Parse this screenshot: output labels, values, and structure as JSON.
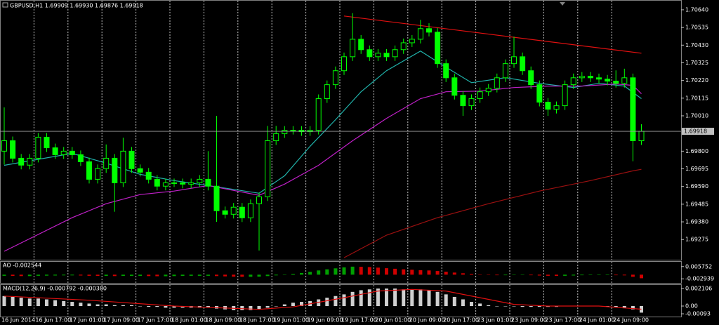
{
  "chart_data": [
    {
      "type": "candlestick",
      "title": "GBPUSD,H1  1.69909 1.69930 1.69876 1.69918",
      "categories": [
        "16 Jun 2014",
        null,
        null,
        null,
        "16 Jun 17:00",
        null,
        null,
        null,
        "17 Jun 01:00",
        null,
        null,
        null,
        "17 Jun 09:00",
        null,
        null,
        null,
        "17 Jun 17:00",
        null,
        null,
        null,
        "18 Jun 01:00",
        null,
        null,
        null,
        "18 Jun 09:00",
        null,
        null,
        null,
        "18 Jun 17:00",
        null,
        null,
        null,
        "19 Jun 01:00",
        null,
        null,
        null,
        "19 Jun 09:00",
        null,
        null,
        null,
        "19 Jun 17:00",
        null,
        null,
        null,
        "20 Jun 01:00",
        null,
        null,
        null,
        "20 Jun 09:00",
        null,
        null,
        null,
        "20 Jun 17:00",
        null,
        null,
        null,
        "23 Jun 01:00",
        null,
        null,
        null,
        "23 Jun 09:00",
        null,
        null,
        null,
        "23 Jun 17:00",
        null,
        null,
        null,
        "24 Jun 01:00",
        null,
        null,
        null,
        "24 Jun 09:00",
        null,
        null,
        null
      ],
      "open": [
        1.698,
        1.69862,
        1.69758,
        1.69717,
        1.69758,
        1.69883,
        1.6982,
        1.69779,
        1.698,
        1.69779,
        1.69737,
        1.69633,
        1.69696,
        1.69758,
        1.69612,
        1.698,
        1.69696,
        1.69675,
        1.69633,
        1.69592,
        1.69612,
        1.69612,
        1.69604,
        1.69612,
        1.69633,
        1.69592,
        1.69446,
        1.69425,
        1.69467,
        1.69404,
        1.69488,
        1.69529,
        1.69862,
        1.69904,
        1.69924,
        1.69924,
        1.69916,
        1.69924,
        1.70112,
        1.70195,
        1.70278,
        1.70361,
        1.70465,
        1.70403,
        1.70361,
        1.70382,
        1.70361,
        1.70403,
        1.70444,
        1.70465,
        1.70528,
        1.70507,
        1.7032,
        1.70236,
        1.70132,
        1.7007,
        1.70112,
        1.70153,
        1.70174,
        1.70236,
        1.7032,
        1.70361,
        1.70278,
        1.70195,
        1.70091,
        1.70049,
        1.7007,
        1.70195,
        1.70236,
        1.70245,
        1.70236,
        1.70228,
        1.70216,
        1.70203,
        1.70236,
        1.69862
      ],
      "high": [
        1.7006,
        1.69887,
        1.69783,
        1.69783,
        1.69908,
        1.69908,
        1.69845,
        1.69825,
        1.69825,
        1.69804,
        1.69762,
        1.69721,
        1.6984,
        1.69783,
        1.6988,
        1.69825,
        1.69721,
        1.697,
        1.69658,
        1.69637,
        1.69637,
        1.69637,
        1.69637,
        1.69658,
        1.698,
        1.7001,
        1.69471,
        1.69492,
        1.69492,
        1.69513,
        1.69554,
        1.6995,
        1.6995,
        1.69949,
        1.69949,
        1.69949,
        1.69949,
        1.70137,
        1.7022,
        1.70303,
        1.70386,
        1.7062,
        1.7049,
        1.70428,
        1.70407,
        1.70407,
        1.70428,
        1.70469,
        1.7049,
        1.7058,
        1.7056,
        1.70532,
        1.70345,
        1.70261,
        1.70157,
        1.70137,
        1.70178,
        1.70199,
        1.70261,
        1.70345,
        1.7048,
        1.70386,
        1.70303,
        1.7022,
        1.70116,
        1.70095,
        1.7022,
        1.70261,
        1.7027,
        1.7027,
        1.70261,
        1.70253,
        1.7028,
        1.7029,
        1.70261,
        1.6996
      ],
      "low": [
        1.6972,
        1.69733,
        1.69692,
        1.69692,
        1.69733,
        1.69795,
        1.69754,
        1.69754,
        1.69754,
        1.69712,
        1.69608,
        1.69608,
        1.69671,
        1.6944,
        1.69587,
        1.69671,
        1.6965,
        1.69608,
        1.69567,
        1.69567,
        1.69587,
        1.69579,
        1.69579,
        1.69587,
        1.69567,
        1.6938,
        1.694,
        1.694,
        1.69379,
        1.69379,
        1.6921,
        1.69504,
        1.69837,
        1.69879,
        1.69899,
        1.69891,
        1.69891,
        1.69899,
        1.70087,
        1.7017,
        1.70253,
        1.70336,
        1.70378,
        1.70336,
        1.70336,
        1.70336,
        1.70336,
        1.70378,
        1.70419,
        1.7044,
        1.70482,
        1.70295,
        1.70211,
        1.70107,
        1.7001,
        1.70045,
        1.70087,
        1.70128,
        1.70149,
        1.70211,
        1.70295,
        1.70253,
        1.7017,
        1.70066,
        1.7001,
        1.70024,
        1.70045,
        1.7017,
        1.70211,
        1.70211,
        1.70203,
        1.70191,
        1.70178,
        1.70178,
        1.6974,
        1.69837
      ],
      "close": [
        1.69862,
        1.69758,
        1.69717,
        1.69758,
        1.69883,
        1.6982,
        1.69779,
        1.698,
        1.69779,
        1.69737,
        1.69633,
        1.69696,
        1.69758,
        1.69612,
        1.698,
        1.69696,
        1.69675,
        1.69633,
        1.69592,
        1.69612,
        1.69612,
        1.69604,
        1.69612,
        1.69633,
        1.69592,
        1.69446,
        1.69425,
        1.69467,
        1.69404,
        1.69488,
        1.69529,
        1.69862,
        1.69904,
        1.69924,
        1.69924,
        1.69916,
        1.69924,
        1.70112,
        1.70195,
        1.70278,
        1.70361,
        1.70465,
        1.70403,
        1.70361,
        1.70382,
        1.70361,
        1.70403,
        1.70444,
        1.70465,
        1.70528,
        1.70507,
        1.7032,
        1.70236,
        1.70132,
        1.7007,
        1.70112,
        1.70153,
        1.70174,
        1.70236,
        1.7032,
        1.70361,
        1.70278,
        1.70195,
        1.70091,
        1.70049,
        1.7007,
        1.70195,
        1.70236,
        1.70245,
        1.70236,
        1.70228,
        1.70216,
        1.70203,
        1.70236,
        1.69862,
        1.69918
      ],
      "up_color": "#000000",
      "down_color": "#00ff00",
      "wick_color": "#00ff00",
      "lines": [
        {
          "color": "#20b2aa",
          "x": [
            0,
            8,
            12,
            16,
            20,
            24,
            30,
            33,
            36,
            39,
            42,
            45,
            49,
            52,
            55,
            59,
            63,
            67,
            70,
            73,
            75
          ],
          "values": [
            1.69716,
            1.69787,
            1.69729,
            1.69662,
            1.69625,
            1.69596,
            1.6955,
            1.69654,
            1.69829,
            1.69987,
            1.70153,
            1.70278,
            1.70395,
            1.70299,
            1.70207,
            1.70237,
            1.70203,
            1.70178,
            1.70203,
            1.70187,
            1.70112
          ]
        },
        {
          "color": "#c020c8",
          "x": [
            0,
            8,
            12,
            16,
            20,
            24,
            30,
            33,
            37,
            41,
            45,
            49,
            52,
            56,
            60,
            64,
            68,
            72,
            74,
            75
          ],
          "values": [
            1.69205,
            1.69405,
            1.69488,
            1.69542,
            1.69563,
            1.69596,
            1.69538,
            1.69604,
            1.69716,
            1.69862,
            1.69995,
            1.70112,
            1.70153,
            1.70157,
            1.70178,
            1.70187,
            1.70187,
            1.70199,
            1.70191,
            1.70141
          ]
        },
        {
          "color": "#9a1010",
          "x": [
            40,
            45,
            51,
            57,
            63,
            69,
            74,
            75
          ],
          "values": [
            1.69167,
            1.69301,
            1.69405,
            1.69488,
            1.69563,
            1.69625,
            1.69683,
            1.69692
          ]
        },
        {
          "color": "#e01010",
          "x": [
            40,
            75
          ],
          "values": [
            1.70603,
            1.70382
          ]
        }
      ],
      "current_price": 1.69918,
      "ylim": [
        1.69155,
        1.70694
      ],
      "yticks": [
        {
          "value": 1.7064,
          "label": "1.70640"
        },
        1.70535,
        {
          "value": 1.7043,
          "label": "1.70430"
        },
        1.70325,
        {
          "value": 1.7022,
          "label": "1.70220"
        },
        1.70115,
        {
          "value": 1.7001,
          "label": "1.70010"
        },
        {
          "value": 1.698,
          "label": "1.69800"
        },
        1.69695,
        {
          "value": 1.6959,
          "label": "1.69590"
        },
        1.69485,
        {
          "value": 1.6938,
          "label": "1.69380"
        },
        1.69275
      ],
      "grid": "vertical"
    },
    {
      "type": "bar",
      "title": "AO -0.002544",
      "values": [
        -0.0008,
        -0.0009,
        -0.001,
        -0.001,
        -0.0008,
        -0.0007,
        -0.0006,
        -0.0005,
        -0.0005,
        -0.0006,
        -0.0008,
        -0.0009,
        -0.0009,
        -0.001,
        -0.0009,
        -0.0009,
        -0.0009,
        -0.001,
        -0.0011,
        -0.0011,
        -0.001,
        -0.0009,
        -0.0008,
        -0.0008,
        -0.0008,
        -0.001,
        -0.0012,
        -0.0014,
        -0.0015,
        -0.0015,
        -0.0014,
        -0.001,
        -0.0005,
        0,
        0.0006,
        0.0012,
        0.002,
        0.003,
        0.0038,
        0.0045,
        0.0052,
        0.0057,
        0.0056,
        0.0054,
        0.005,
        0.0046,
        0.0042,
        0.0038,
        0.0035,
        0.0032,
        0.003,
        0.0026,
        0.0021,
        0.0015,
        0.001,
        0.0006,
        0.0002,
        -0.0002,
        -0.0004,
        -0.0004,
        -0.0002,
        -0.0002,
        -0.0004,
        -0.0006,
        -0.0008,
        -0.0009,
        -0.0008,
        -0.0006,
        -0.0004,
        -0.0003,
        -0.0003,
        -0.0003,
        -0.0004,
        -0.0005,
        -0.0015,
        -0.002544
      ],
      "up_color": "#00a000",
      "down_color": "#d00000",
      "ylim": [
        -0.005836,
        0.009132
      ],
      "yticks": [
        0.005752,
        -0.002939
      ]
    },
    {
      "type": "bar",
      "title": "MACD(12,26,9) -0.000792 -0.000380",
      "values": [
        0.0012,
        0.0011,
        0.001,
        0.0009,
        0.0009,
        0.0008,
        0.0007,
        0.0006,
        0.0005,
        0.0004,
        0.0003,
        0.0002,
        0.0002,
        0.0001,
        0.0001,
        0.0001,
        0,
        -0.0001,
        -0.0001,
        -0.0002,
        -0.0002,
        -0.0002,
        -0.0002,
        -0.0002,
        -0.0002,
        -0.0003,
        -0.0004,
        -0.0005,
        -0.0005,
        -0.0005,
        -0.0004,
        -0.0002,
        0,
        0.0002,
        0.0004,
        0.0005,
        0.0006,
        0.0008,
        0.001,
        0.0012,
        0.0014,
        0.0017,
        0.0019,
        0.002,
        0.0021,
        0.0021,
        0.0021,
        0.002,
        0.002,
        0.002,
        0.0019,
        0.0017,
        0.0014,
        0.0011,
        0.0008,
        0.0005,
        0.0003,
        0.0001,
        0,
        0,
        0,
        -0.0001,
        -0.0001,
        -0.0001,
        -0.0001,
        -0.0001,
        0,
        0,
        0,
        0,
        0,
        0,
        -0.0001,
        -0.0002,
        -0.0004,
        -0.000792
      ],
      "color": "#d0d0d0",
      "signal": {
        "color": "#e01010",
        "x": [
          0,
          10,
          20,
          30,
          34,
          40,
          44,
          48,
          52,
          56,
          60,
          64,
          70,
          75
        ],
        "values": [
          0.0012,
          0.0007,
          0,
          -0.0004,
          -0.0001,
          0.001,
          0.0018,
          0.002,
          0.0018,
          0.001,
          0.0002,
          0,
          0,
          -0.00038
        ]
      },
      "ylim": [
        -0.001264,
        0.002527
      ],
      "yticks": [
        0.002106,
        {
          "value": 0,
          "label": "0.00"
        },
        -0.00093
      ]
    }
  ]
}
